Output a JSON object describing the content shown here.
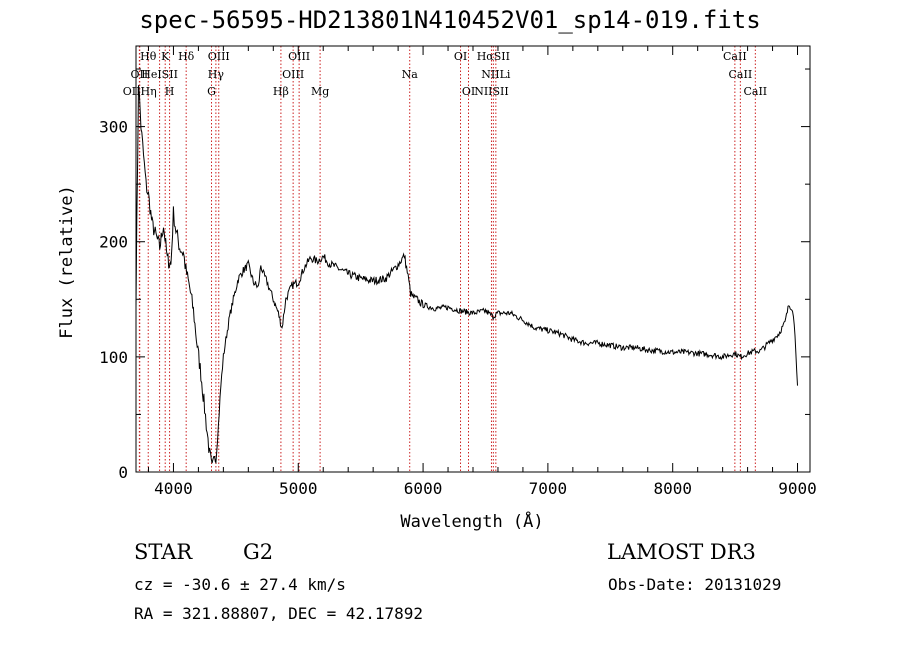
{
  "chart_data": {
    "type": "line",
    "title": "spec-56595-HD213801N410452V01_sp14-019.fits",
    "xlabel": "Wavelength (Å)",
    "ylabel": "Flux (relative)",
    "xlim": [
      3700,
      9100
    ],
    "ylim": [
      0,
      370
    ],
    "xticks": [
      4000,
      5000,
      6000,
      7000,
      8000,
      9000
    ],
    "yticks": [
      0,
      100,
      200,
      300
    ],
    "series": [
      {
        "name": "spectrum",
        "x": [
          3700,
          3720,
          3740,
          3760,
          3780,
          3800,
          3830,
          3860,
          3890,
          3920,
          3950,
          3980,
          4000,
          4020,
          4050,
          4080,
          4100,
          4130,
          4160,
          4190,
          4220,
          4250,
          4270,
          4290,
          4310,
          4330,
          4340,
          4360,
          4380,
          4400,
          4420,
          4450,
          4480,
          4520,
          4560,
          4600,
          4640,
          4680,
          4700,
          4720,
          4750,
          4800,
          4840,
          4870,
          4900,
          4950,
          5000,
          5050,
          5100,
          5150,
          5200,
          5250,
          5300,
          5400,
          5500,
          5600,
          5700,
          5800,
          5850,
          5880,
          5900,
          5920,
          5950,
          6000,
          6100,
          6200,
          6300,
          6400,
          6500,
          6560,
          6600,
          6700,
          6800,
          6900,
          7000,
          7100,
          7200,
          7300,
          7400,
          7500,
          7600,
          7700,
          7800,
          7900,
          8000,
          8100,
          8200,
          8300,
          8400,
          8500,
          8540,
          8600,
          8660,
          8700,
          8750,
          8800,
          8850,
          8900,
          8930,
          8960,
          8980,
          9000
        ],
        "values": [
          150,
          340,
          300,
          275,
          250,
          240,
          215,
          205,
          195,
          215,
          185,
          180,
          225,
          210,
          195,
          190,
          175,
          160,
          140,
          110,
          85,
          55,
          35,
          15,
          5,
          15,
          10,
          40,
          75,
          100,
          115,
          135,
          150,
          168,
          175,
          180,
          165,
          160,
          180,
          172,
          165,
          150,
          138,
          125,
          150,
          162,
          165,
          178,
          186,
          183,
          187,
          181,
          178,
          172,
          168,
          166,
          168,
          180,
          188,
          170,
          155,
          152,
          150,
          145,
          142,
          143,
          140,
          138,
          140,
          135,
          138,
          138,
          132,
          125,
          123,
          120,
          115,
          112,
          112,
          110,
          108,
          108,
          106,
          105,
          104,
          104,
          103,
          102,
          100,
          103,
          100,
          103,
          105,
          105,
          110,
          115,
          120,
          130,
          145,
          142,
          120,
          75
        ]
      }
    ],
    "lines": [
      {
        "label": "Hθ",
        "x": 3798,
        "row": 0
      },
      {
        "label": "K",
        "x": 3934,
        "row": 0
      },
      {
        "label": "Hδ",
        "x": 4102,
        "row": 0
      },
      {
        "label": "OIII",
        "x": 4363,
        "row": 0
      },
      {
        "label": "OIII",
        "x": 5007,
        "row": 0
      },
      {
        "label": "OI",
        "x": 6300,
        "row": 0
      },
      {
        "label": "HαSII",
        "x": 6563,
        "row": 0
      },
      {
        "label": "CaII",
        "x": 8498,
        "row": 0
      },
      {
        "label": "OII",
        "x": 3727,
        "row": 1
      },
      {
        "label": "HeISII",
        "x": 3889,
        "row": 1
      },
      {
        "label": "Hγ",
        "x": 4340,
        "row": 1
      },
      {
        "label": "OIII",
        "x": 4959,
        "row": 1
      },
      {
        "label": "Na",
        "x": 5893,
        "row": 1
      },
      {
        "label": "NIILi",
        "x": 6583,
        "row": 1
      },
      {
        "label": "CaII",
        "x": 8542,
        "row": 1
      },
      {
        "label": "OIIHη",
        "x": 3730,
        "row": 2
      },
      {
        "label": "H",
        "x": 3969,
        "row": 2
      },
      {
        "label": "G",
        "x": 4305,
        "row": 2
      },
      {
        "label": "Hβ",
        "x": 4861,
        "row": 2
      },
      {
        "label": "Mg",
        "x": 5175,
        "row": 2
      },
      {
        "label": "OI",
        "x": 6364,
        "row": 2
      },
      {
        "label": "NIISII",
        "x": 6548,
        "row": 2
      },
      {
        "label": "CaII",
        "x": 8662,
        "row": 2
      }
    ],
    "line_color": "#cc2222"
  },
  "info": {
    "class": "STAR",
    "subclass": "G2",
    "survey": "LAMOST DR3",
    "cz": "cz = -30.6 ± 27.4 km/s",
    "obsdate": "Obs-Date: 20131029",
    "coords": "RA = 321.88807, DEC =  42.17892"
  }
}
